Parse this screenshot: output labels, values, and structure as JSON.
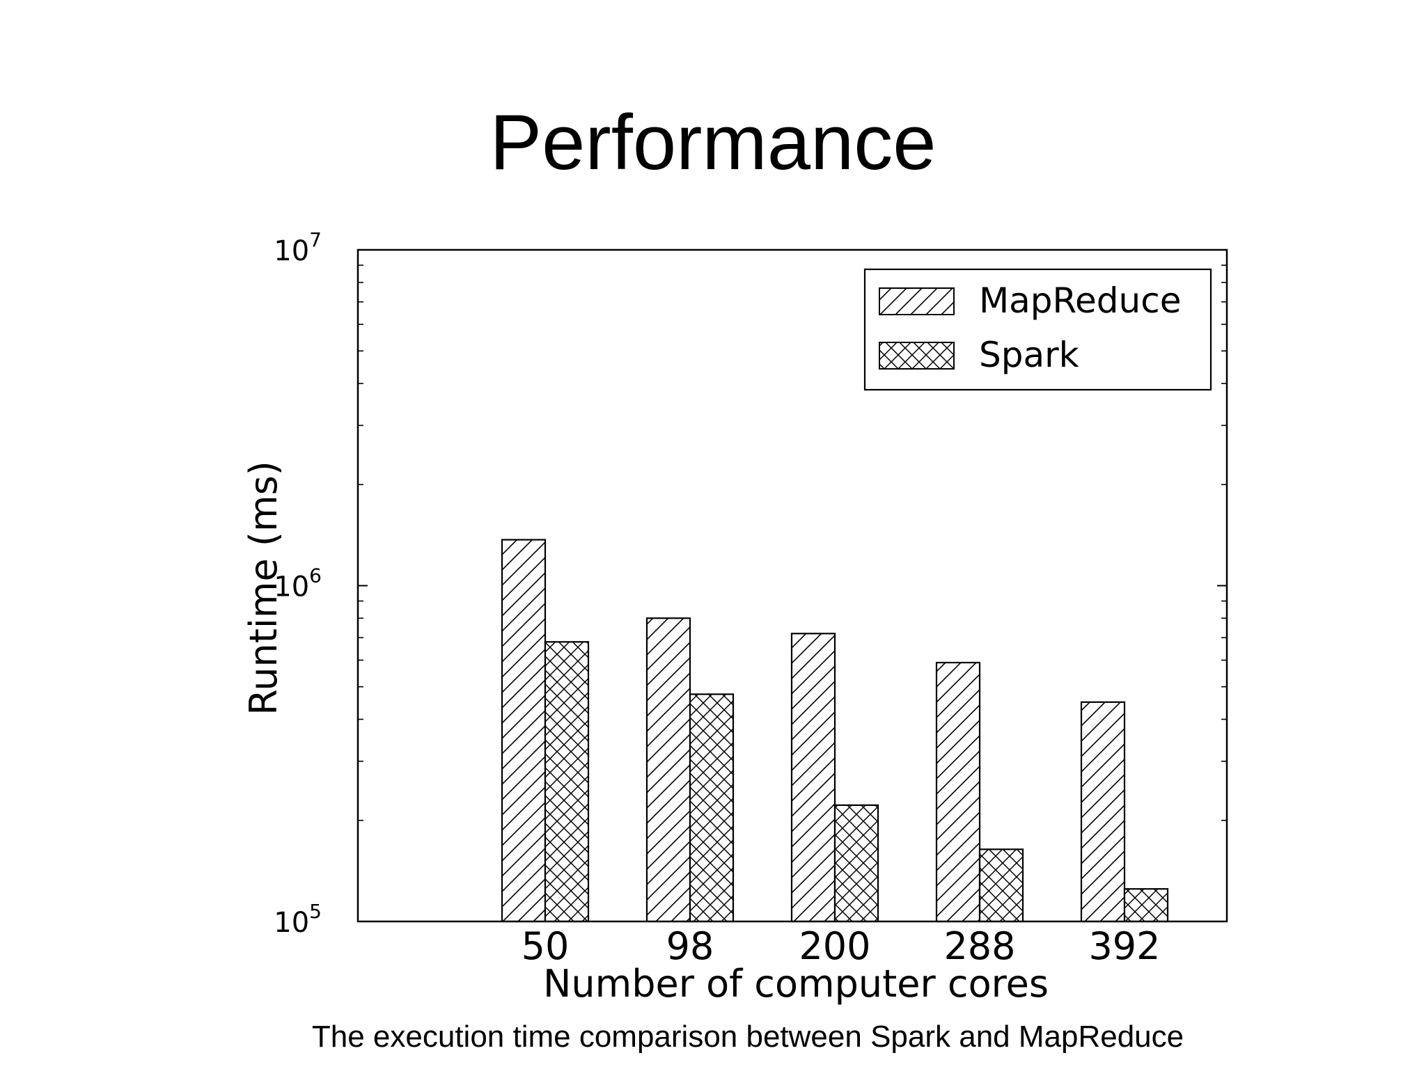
{
  "slide": {
    "title": "Performance",
    "caption": "The execution time comparison between Spark and MapReduce"
  },
  "chart_data": {
    "type": "bar",
    "title": "",
    "xlabel": "Number of computer cores",
    "ylabel": "Runtime (ms)",
    "y_scale": "log",
    "ylim": [
      100000,
      10000000
    ],
    "y_ticks": [
      {
        "value": 100000,
        "base": "10",
        "exp": "5"
      },
      {
        "value": 1000000,
        "base": "10",
        "exp": "6"
      },
      {
        "value": 10000000,
        "base": "10",
        "exp": "7"
      }
    ],
    "categories": [
      "50",
      "98",
      "200",
      "288",
      "392"
    ],
    "series": [
      {
        "name": "MapReduce",
        "pattern": "diagonal-hatch",
        "values": [
          1370000,
          800000,
          720000,
          590000,
          450000
        ]
      },
      {
        "name": "Spark",
        "pattern": "cross-hatch",
        "values": [
          680000,
          475000,
          222000,
          164000,
          125000
        ]
      }
    ],
    "legend_position": "top-right",
    "grid": false,
    "bar_fill": "#ffffff",
    "line_color": "#000000"
  }
}
